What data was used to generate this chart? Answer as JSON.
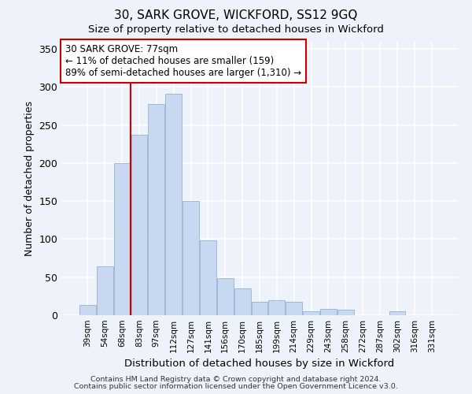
{
  "title": "30, SARK GROVE, WICKFORD, SS12 9GQ",
  "subtitle": "Size of property relative to detached houses in Wickford",
  "xlabel": "Distribution of detached houses by size in Wickford",
  "ylabel": "Number of detached properties",
  "bar_color": "#c8d8f0",
  "bar_edge_color": "#a0b8d8",
  "categories": [
    "39sqm",
    "54sqm",
    "68sqm",
    "83sqm",
    "97sqm",
    "112sqm",
    "127sqm",
    "141sqm",
    "156sqm",
    "170sqm",
    "185sqm",
    "199sqm",
    "214sqm",
    "229sqm",
    "243sqm",
    "258sqm",
    "272sqm",
    "287sqm",
    "302sqm",
    "316sqm",
    "331sqm"
  ],
  "values": [
    13,
    64,
    200,
    237,
    278,
    291,
    150,
    98,
    49,
    35,
    18,
    20,
    18,
    5,
    8,
    7,
    0,
    0,
    5,
    0,
    0
  ],
  "ylim": [
    0,
    360
  ],
  "yticks": [
    0,
    50,
    100,
    150,
    200,
    250,
    300,
    350
  ],
  "vline_x": 2.5,
  "vline_color": "#cc0000",
  "annotation_text": "30 SARK GROVE: 77sqm\n← 11% of detached houses are smaller (159)\n89% of semi-detached houses are larger (1,310) →",
  "annotation_box_color": "#ffffff",
  "annotation_box_edge": "#cc0000",
  "footer1": "Contains HM Land Registry data © Crown copyright and database right 2024.",
  "footer2": "Contains public sector information licensed under the Open Government Licence v3.0.",
  "background_color": "#eef2fa"
}
